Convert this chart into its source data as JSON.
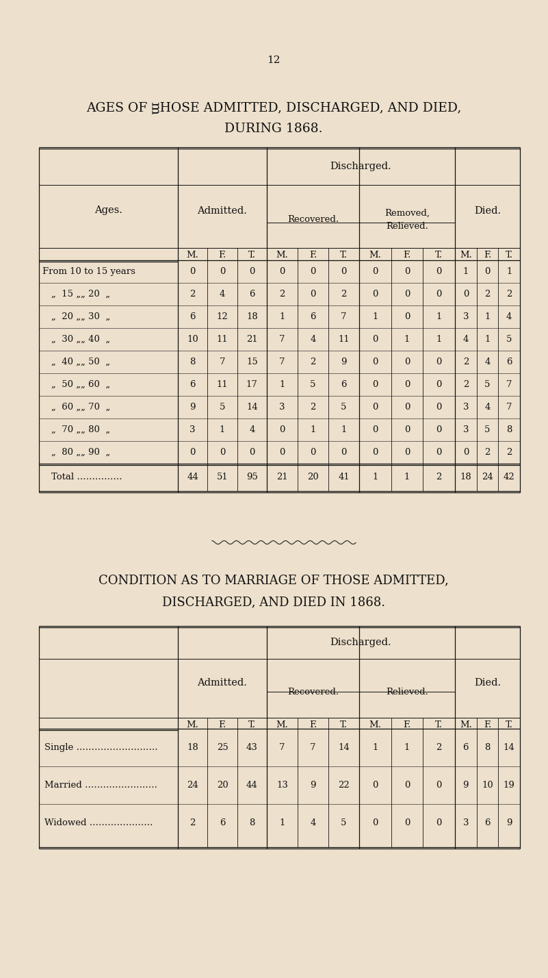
{
  "bg_color": "#ede0cc",
  "page_number": "12",
  "title1": "AGES OF ᴟHOSE ADMITTED, DISCHARGED, AND DIED,",
  "title2": "DURING 1868.",
  "table1": {
    "rows": [
      [
        "From 10 to 15 years",
        "0",
        "0",
        "0",
        "0",
        "0",
        "0",
        "0",
        "0",
        "0",
        "1",
        "0",
        "1"
      ],
      [
        "„  15 „„ 20  „",
        "2",
        "4",
        "6",
        "2",
        "0",
        "2",
        "0",
        "0",
        "0",
        "0",
        "2",
        "2"
      ],
      [
        "„  20 „„ 30  „",
        "6",
        "12",
        "18",
        "1",
        "6",
        "7",
        "1",
        "0",
        "1",
        "3",
        "1",
        "4"
      ],
      [
        "„  30 „„ 40  „",
        "10",
        "11",
        "21",
        "7",
        "4",
        "11",
        "0",
        "1",
        "1",
        "4",
        "1",
        "5"
      ],
      [
        "„  40 „„ 50  „",
        "8",
        "7",
        "15",
        "7",
        "2",
        "9",
        "0",
        "0",
        "0",
        "2",
        "4",
        "6"
      ],
      [
        "„  50 „„ 60  „",
        "6",
        "11",
        "17",
        "1",
        "5",
        "6",
        "0",
        "0",
        "0",
        "2",
        "5",
        "7"
      ],
      [
        "„  60 „„ 70  „",
        "9",
        "5",
        "14",
        "3",
        "2",
        "5",
        "0",
        "0",
        "0",
        "3",
        "4",
        "7"
      ],
      [
        "„  70 „„ 80  „",
        "3",
        "1",
        "4",
        "0",
        "1",
        "1",
        "0",
        "0",
        "0",
        "3",
        "5",
        "8"
      ],
      [
        "„  80 „„ 90  „",
        "0",
        "0",
        "0",
        "0",
        "0",
        "0",
        "0",
        "0",
        "0",
        "0",
        "2",
        "2"
      ]
    ],
    "total_row": [
      "Total ……………",
      "44",
      "51",
      "95",
      "21",
      "20",
      "41",
      "1",
      "1",
      "2",
      "18",
      "24",
      "42"
    ]
  },
  "title3": "CONDITION AS TO MARRIAGE OF THOSE ADMITTED,",
  "title4": "DISCHARGED, AND DIED IN 1868.",
  "table2": {
    "rows": [
      [
        "Single ………………………",
        "18",
        "25",
        "43",
        "7",
        "7",
        "14",
        "1",
        "1",
        "2",
        "6",
        "8",
        "14"
      ],
      [
        "Married ……………………",
        "24",
        "20",
        "44",
        "13",
        "9",
        "22",
        "0",
        "0",
        "0",
        "9",
        "10",
        "19"
      ],
      [
        "Widowed …………………",
        "2",
        "6",
        "8",
        "1",
        "4",
        "5",
        "0",
        "0",
        "0",
        "3",
        "6",
        "9"
      ]
    ]
  },
  "lc": "#111111",
  "tc": "#111111"
}
